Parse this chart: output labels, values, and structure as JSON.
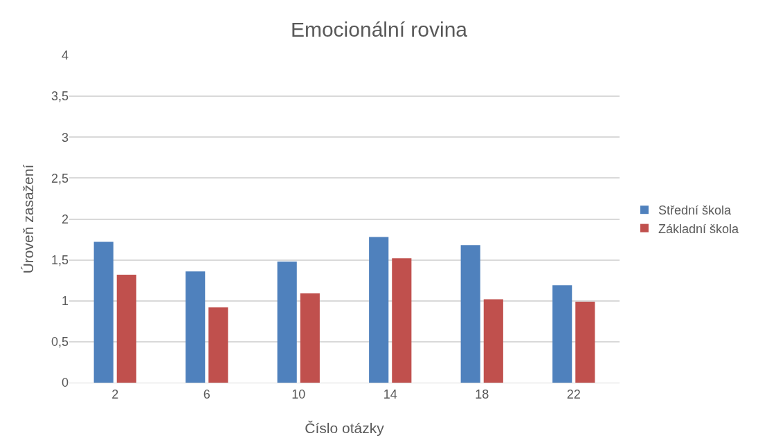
{
  "chart_data": {
    "type": "bar",
    "title": "Emocionální rovina",
    "xlabel": "Číslo otázky",
    "ylabel": "Úroveň zasažení",
    "categories": [
      "2",
      "6",
      "10",
      "14",
      "18",
      "22"
    ],
    "series": [
      {
        "name": "Střední škola",
        "color": "#4f81bd",
        "values": [
          1.72,
          1.36,
          1.48,
          1.78,
          1.68,
          1.19
        ]
      },
      {
        "name": "Základní škola",
        "color": "#c0504d",
        "values": [
          1.32,
          0.92,
          1.09,
          1.52,
          1.02,
          0.99
        ]
      }
    ],
    "ylim": [
      0,
      4
    ],
    "yticks": [
      0,
      {
        "value": 0.5,
        "label": "0,5"
      },
      1,
      {
        "value": 1.5,
        "label": "1,5"
      },
      2,
      {
        "value": 2.5,
        "label": "2,5"
      },
      3,
      {
        "value": 3.5,
        "label": "3,5"
      },
      4
    ],
    "grid": "y",
    "legend": "right"
  }
}
